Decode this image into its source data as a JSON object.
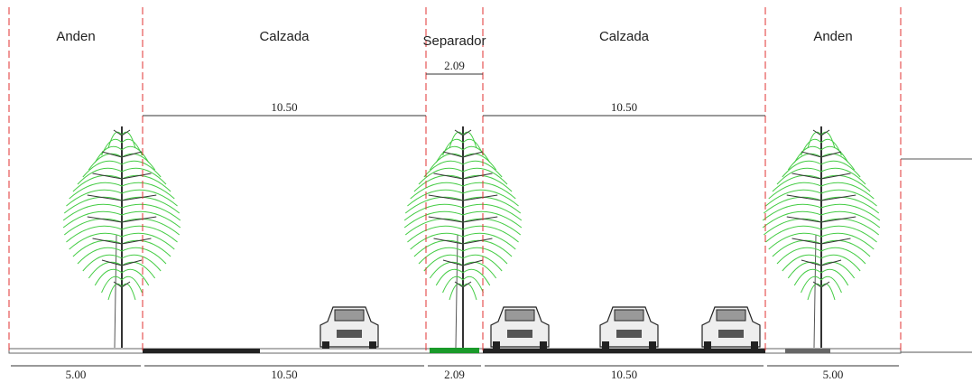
{
  "sections": [
    {
      "label": "Anden",
      "width": "5.00"
    },
    {
      "label": "Calzada",
      "width": "10.50"
    },
    {
      "label": "Separador",
      "width": "2.09"
    },
    {
      "label": "Calzada",
      "width": "10.50"
    },
    {
      "label": "Anden",
      "width": "5.00"
    }
  ],
  "top_dimensions": [
    "10.50",
    "2.09",
    "10.50"
  ]
}
